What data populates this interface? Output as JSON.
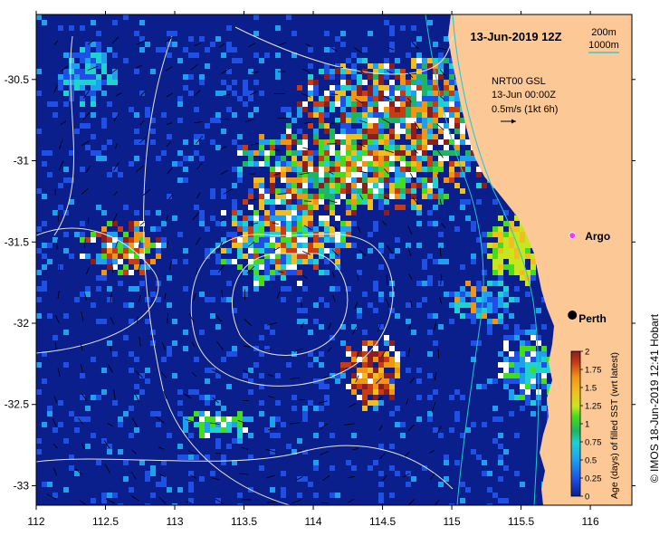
{
  "map": {
    "title": "13-Jun-2019 12Z",
    "contour_legend": [
      {
        "label": "200m",
        "color": "#2b2b2b"
      },
      {
        "label": "1000m",
        "color": "#1ec9c9"
      }
    ],
    "current_legend": {
      "line1": "NRT00 GSL",
      "line2": "13-Jun 00:00Z",
      "line3": "0.5m/s (1kt 6h)"
    },
    "places": [
      {
        "name": "Argo",
        "marker": "argo-float-marker",
        "lon": 115.87,
        "lat": -31.46,
        "color": "#ff33ff"
      },
      {
        "name": "Perth",
        "marker": "city-marker",
        "lon": 115.87,
        "lat": -31.95,
        "color": "#000000"
      }
    ],
    "x_ticks": [
      "112",
      "112.5",
      "113",
      "113.5",
      "114",
      "114.5",
      "115",
      "115.5",
      "116"
    ],
    "y_ticks": [
      "-30.5",
      "-31",
      "-31.5",
      "-32",
      "-32.5",
      "-33"
    ],
    "x_range": [
      112.0,
      116.3
    ],
    "y_range": [
      -30.1,
      -33.12
    ],
    "side_credit": "© IMOS 18-Jun-2019 12:41 Hobart"
  },
  "colorbar": {
    "label": "Age (days) of filled SST (wrt latest)",
    "ticks": [
      "2",
      "1.75",
      "1.5",
      "1.25",
      "1",
      "0.75",
      "0.5",
      "0.25",
      "0"
    ],
    "range": [
      0,
      2
    ],
    "colors": [
      "#0a1e8c",
      "#1e50e6",
      "#1ea0f0",
      "#1ed2d2",
      "#1eb464",
      "#46dc1e",
      "#c8e61e",
      "#f0be1e",
      "#f09614",
      "#c83c14",
      "#8c1e1e"
    ]
  },
  "land_color": "#fbc896",
  "ocean_color": "#0a1e8c"
}
